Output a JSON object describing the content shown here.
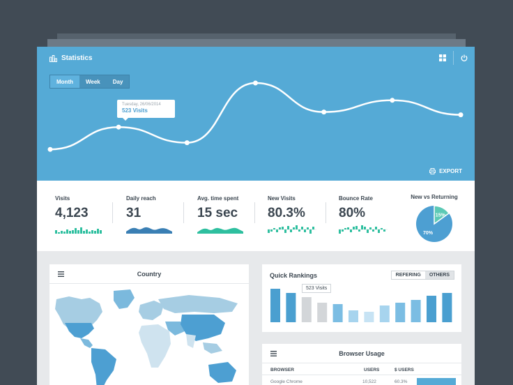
{
  "header": {
    "title": "Statistics",
    "tabs": [
      {
        "label": "Month",
        "active": true
      },
      {
        "label": "Week",
        "active": false
      },
      {
        "label": "Day",
        "active": false
      }
    ],
    "tooltip": {
      "date": "Tuesday, 26/06/2014",
      "value": "523 Visits"
    },
    "export_label": "EXPORT"
  },
  "chart_data": [
    {
      "type": "line",
      "series": [
        {
          "values": [
            31,
            71,
            43,
            150,
            98,
            119,
            93
          ]
        }
      ]
    },
    {
      "type": "bar",
      "values": [
        48,
        42,
        36,
        28,
        26,
        17,
        15,
        24,
        28,
        32,
        38,
        42
      ],
      "highlight_index": 3,
      "tooltip": "523 Visits"
    }
  ],
  "stats": [
    {
      "label": "Visits",
      "value": "4,123"
    },
    {
      "label": "Daily reach",
      "value": "31"
    },
    {
      "label": "Avg. time spent",
      "value": "15 sec"
    },
    {
      "label": "New Visits",
      "value": "80.3%"
    },
    {
      "label": "Bounce Rate",
      "value": "80%"
    }
  ],
  "returning": {
    "label": "New vs Returning",
    "new_pct": 15,
    "returning_pct": 70,
    "new_label": "15%",
    "returning_label": "70%"
  },
  "country": {
    "title": "Country"
  },
  "rankings": {
    "title": "Quick Rankings",
    "toggle": [
      {
        "label": "REFERING",
        "active": true
      },
      {
        "label": "OTHERS",
        "active": false
      }
    ],
    "tooltip": "523 Visits"
  },
  "browsers": {
    "title": "Browser Usage",
    "columns": [
      "BROWSER",
      "USERS",
      "$ USERS"
    ],
    "rows": [
      {
        "browser": "Google Chrome",
        "users": "10,522",
        "pct": "60.3%"
      }
    ]
  },
  "colors": {
    "hero": "#55aad6",
    "accent": "#4a9fd0",
    "teal": "#2ebf9f",
    "navy": "#3a7fb4",
    "text": "#3b4650"
  }
}
